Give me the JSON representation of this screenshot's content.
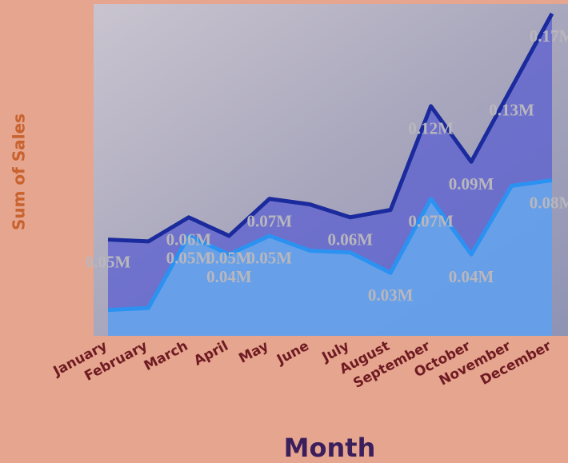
{
  "chart_data": {
    "type": "area",
    "x_label": "Month",
    "y_label": "Sum of Sales",
    "categories": [
      "January",
      "February",
      "March",
      "April",
      "May",
      "June",
      "July",
      "August",
      "September",
      "October",
      "November",
      "December"
    ],
    "series": [
      {
        "color": "#1b2a9c",
        "fill": "#5b5fd0",
        "values": [
          0.052,
          0.051,
          0.064,
          0.054,
          0.074,
          0.071,
          0.064,
          0.068,
          0.124,
          0.094,
          0.134,
          0.174
        ],
        "value_labels": [
          "0.05M",
          null,
          "0.06M",
          "0.05M",
          "0.07M",
          null,
          "0.06M",
          null,
          "0.12M",
          "0.09M",
          "0.13M",
          "0.17M"
        ]
      },
      {
        "color": "#2b92f2",
        "fill": "#66b0f2",
        "values": [
          0.014,
          0.015,
          0.054,
          0.044,
          0.054,
          0.046,
          0.045,
          0.034,
          0.074,
          0.044,
          0.081,
          0.084
        ],
        "value_labels": [
          null,
          null,
          "0.05M",
          "0.04M",
          "0.05M",
          null,
          null,
          "0.03M",
          "0.07M",
          "0.04M",
          null,
          "0.08M"
        ]
      }
    ]
  }
}
